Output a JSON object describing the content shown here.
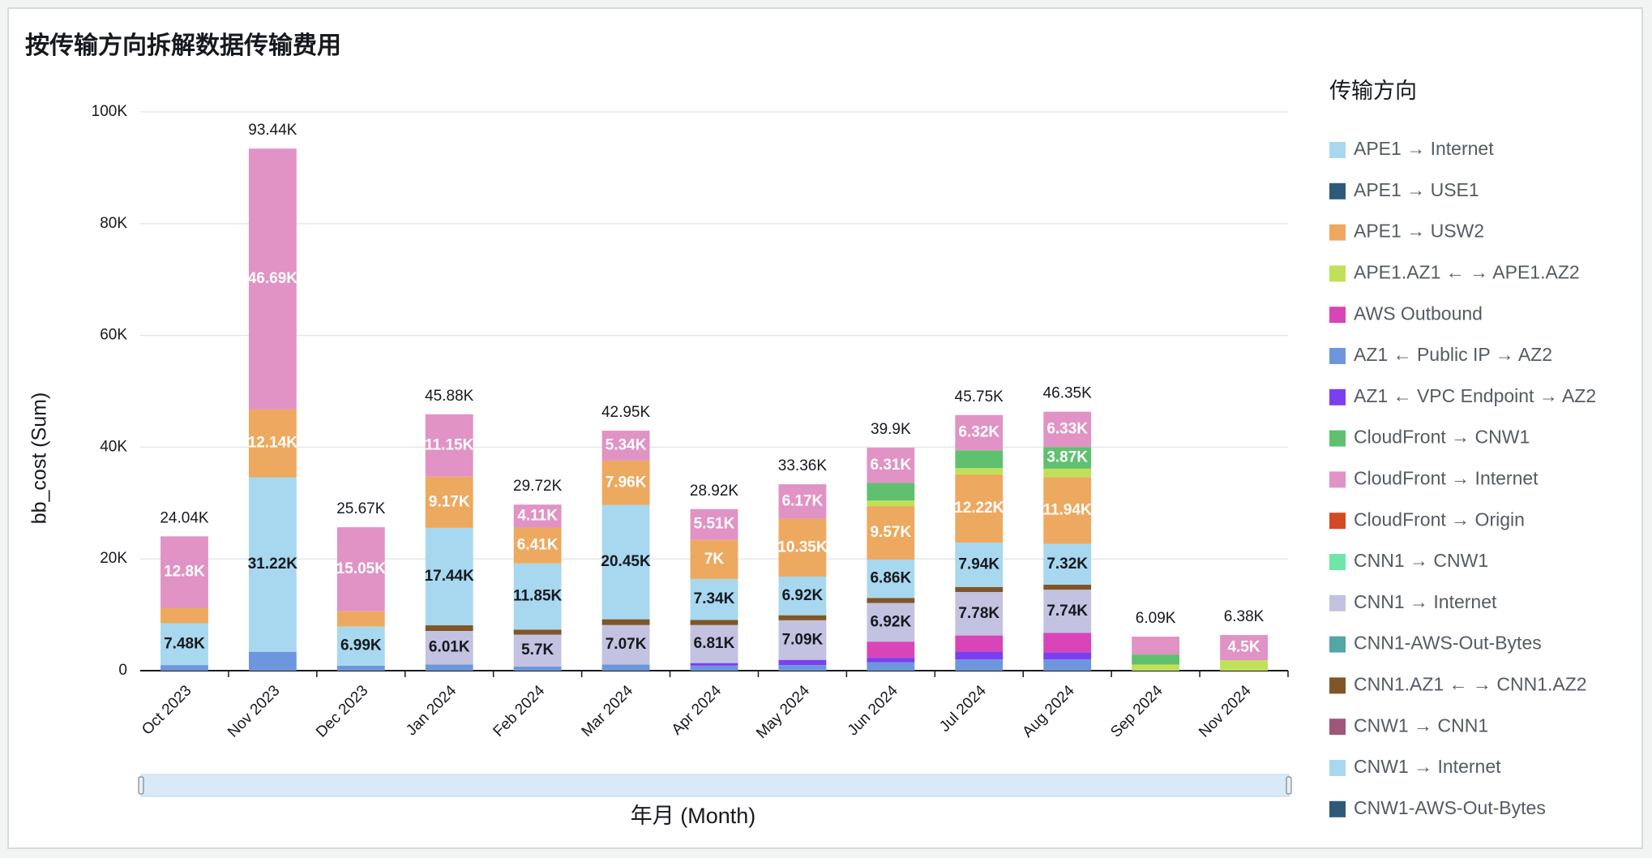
{
  "chart_data": {
    "type": "stacked_bar",
    "title": "按传输方向拆解数据传输费用",
    "x_label": "年月 (Month)",
    "y_label": "bb_cost (Sum)",
    "legend_title": "传输方向",
    "legend_position": "right",
    "grid": true,
    "categories": [
      "Oct 2023",
      "Nov 2023",
      "Dec 2023",
      "Jan 2024",
      "Feb 2024",
      "Mar 2024",
      "Apr 2024",
      "May 2024",
      "Jun 2024",
      "Jul 2024",
      "Aug 2024",
      "Sep 2024",
      "Nov 2024"
    ],
    "ylim": [
      0,
      100000
    ],
    "yticks": [
      0,
      {
        "value": 20000,
        "label": "20K"
      },
      {
        "value": 40000,
        "label": "40K"
      },
      {
        "value": 60000,
        "label": "60K"
      },
      {
        "value": 80000,
        "label": "80K"
      },
      {
        "value": 100000,
        "label": "100K"
      }
    ],
    "totals": [
      24040,
      93440,
      25670,
      45880,
      29720,
      42950,
      28920,
      33360,
      39900,
      45750,
      46350,
      6090,
      6380
    ],
    "total_labels": [
      "24.04K",
      "93.44K",
      "25.67K",
      "45.88K",
      "29.72K",
      "42.95K",
      "28.92K",
      "33.36K",
      "39.9K",
      "45.75K",
      "46.35K",
      "6.09K",
      "6.38K"
    ],
    "series": [
      {
        "name": "APE1 → Internet",
        "color": "#a8d8ef",
        "values": [
          7480,
          31220,
          6990,
          17440,
          11850,
          20450,
          7340,
          6920,
          6860,
          7940,
          7320,
          null,
          null
        ],
        "value_labels": [
          "7.48K",
          "31.22K",
          "6.99K",
          "17.44K",
          "11.85K",
          "20.45K",
          "7.34K",
          "6.92K",
          "6.86K",
          "7.94K",
          "7.32K",
          null,
          null
        ]
      },
      {
        "name": "APE1 → USE1",
        "color": "#2e5a7a",
        "values": [
          null,
          null,
          null,
          null,
          null,
          null,
          null,
          null,
          null,
          null,
          null,
          null,
          null
        ]
      },
      {
        "name": "APE1 → USW2",
        "color": "#eda95f",
        "values": [
          2760,
          12140,
          2730,
          9170,
          6410,
          7960,
          7000,
          10350,
          9570,
          12220,
          11940,
          null,
          null
        ],
        "value_labels": [
          null,
          "12.14K",
          null,
          "9.17K",
          "6.41K",
          "7.96K",
          "7K",
          "10.35K",
          "9.57K",
          "12.22K",
          "11.94K",
          null,
          null
        ]
      },
      {
        "name": "APE1.AZ1 ← → APE1.AZ2",
        "color": "#c1e05a",
        "values": [
          null,
          null,
          null,
          null,
          null,
          null,
          null,
          null,
          1000,
          1100,
          1500,
          1100,
          1880
        ]
      },
      {
        "name": "AWS Outbound",
        "color": "#d845b8",
        "values": [
          null,
          null,
          null,
          null,
          null,
          null,
          null,
          null,
          2900,
          2900,
          3450,
          null,
          null
        ]
      },
      {
        "name": "AZ1 ← Public IP → AZ2",
        "color": "#6e96dd",
        "values": [
          1000,
          3390,
          900,
          1100,
          750,
          1100,
          900,
          1000,
          1500,
          2000,
          2000,
          null,
          null
        ]
      },
      {
        "name": "AZ1 ← VPC Endpoint → AZ2",
        "color": "#7b3ff0",
        "values": [
          null,
          null,
          null,
          null,
          null,
          null,
          460,
          930,
          800,
          1400,
          1300,
          null,
          null
        ]
      },
      {
        "name": "CloudFront → CNW1",
        "color": "#5fc16f",
        "values": [
          null,
          null,
          null,
          null,
          null,
          null,
          null,
          null,
          3140,
          3190,
          3870,
          1790,
          null
        ],
        "value_labels": [
          null,
          null,
          null,
          null,
          null,
          null,
          null,
          null,
          null,
          null,
          "3.87K",
          null,
          null
        ]
      },
      {
        "name": "CloudFront → Internet",
        "color": "#e093c4",
        "values": [
          12800,
          46690,
          15050,
          11150,
          4110,
          5340,
          5510,
          6170,
          6310,
          6320,
          6330,
          3200,
          4500
        ],
        "value_labels": [
          "12.8K",
          "46.69K",
          "15.05K",
          "11.15K",
          "4.11K",
          "5.34K",
          "5.51K",
          "6.17K",
          "6.31K",
          "6.32K",
          "6.33K",
          null,
          "4.5K"
        ]
      },
      {
        "name": "CloudFront → Origin",
        "color": "#d14a24",
        "values": [
          null,
          null,
          null,
          null,
          null,
          null,
          null,
          null,
          null,
          null,
          null,
          null,
          null
        ]
      },
      {
        "name": "CNN1 → CNW1",
        "color": "#6ee6a8",
        "values": [
          null,
          null,
          null,
          null,
          null,
          null,
          null,
          null,
          null,
          null,
          null,
          null,
          null
        ]
      },
      {
        "name": "CNN1 → Internet",
        "color": "#c3c2e0",
        "values": [
          null,
          null,
          null,
          6010,
          5700,
          7070,
          6810,
          7090,
          6920,
          7780,
          7740,
          null,
          null
        ],
        "value_labels": [
          null,
          null,
          null,
          "6.01K",
          "5.7K",
          "7.07K",
          "6.81K",
          "7.09K",
          "6.92K",
          "7.78K",
          "7.74K",
          null,
          null
        ]
      },
      {
        "name": "CNN1-AWS-Out-Bytes",
        "color": "#52a6a6",
        "values": [
          null,
          null,
          null,
          null,
          null,
          null,
          null,
          null,
          null,
          null,
          null,
          null,
          null
        ]
      },
      {
        "name": "CNN1.AZ1 ← → CNN1.AZ2",
        "color": "#7f5628",
        "values": [
          null,
          null,
          null,
          1010,
          900,
          1030,
          900,
          900,
          900,
          900,
          900,
          null,
          null
        ]
      },
      {
        "name": "CNW1 → CNN1",
        "color": "#a0557a",
        "values": [
          null,
          null,
          null,
          null,
          null,
          null,
          null,
          null,
          null,
          null,
          null,
          null,
          null
        ]
      },
      {
        "name": "CNW1 → Internet",
        "color": "#a8d8ef",
        "values": [
          null,
          null,
          null,
          null,
          null,
          null,
          null,
          null,
          null,
          null,
          null,
          null,
          null
        ]
      },
      {
        "name": "CNW1-AWS-Out-Bytes",
        "color": "#2e5a7a",
        "values": [
          null,
          null,
          null,
          null,
          null,
          null,
          null,
          null,
          null,
          null,
          null,
          null,
          null
        ]
      }
    ]
  }
}
